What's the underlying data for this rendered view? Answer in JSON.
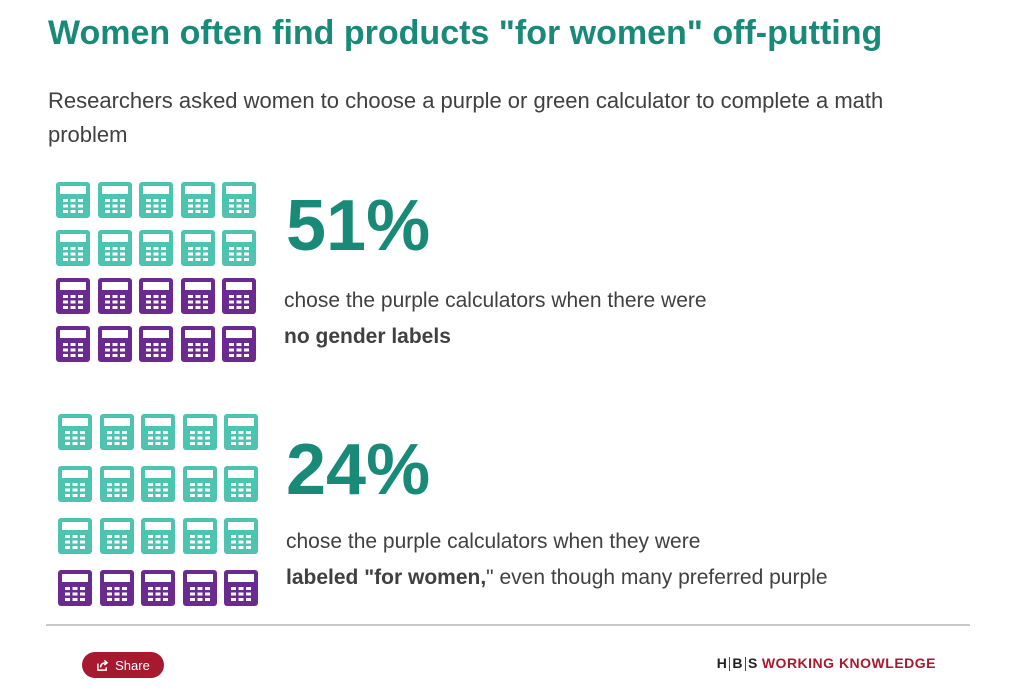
{
  "title": "Women often find products \"for women\" off-putting",
  "subtitle": "Researchers asked women to choose a purple or green calculator to complete a math problem",
  "colors": {
    "green": "#4dc4b0",
    "purple": "#6a2a8f",
    "accent": "#1a8a78",
    "brand": "#a6192e"
  },
  "chart_data": [
    {
      "type": "pictogram",
      "icon": "calculator-icon",
      "total_icons": 20,
      "columns": 5,
      "green_icons": 10,
      "purple_icons": 10,
      "percent_label": "51%",
      "percent_value": 51,
      "description_plain": "chose the purple calculators when there were",
      "description_bold": "no gender labels"
    },
    {
      "type": "pictogram",
      "icon": "calculator-icon",
      "total_icons": 20,
      "columns": 5,
      "green_icons": 15,
      "purple_icons": 5,
      "percent_label": "24%",
      "percent_value": 24,
      "description_plain": "chose the purple calculators when they were",
      "description_bold_prefix": "labeled \"",
      "description_bold": "for women,",
      "description_suffix": "\" even though many preferred purple"
    }
  ],
  "footer": {
    "share_label": "Share",
    "share_icon": "share-icon",
    "brand_hbs_h": "H",
    "brand_hbs_b": "B",
    "brand_hbs_s": "S",
    "brand_name": "WORKING KNOWLEDGE"
  }
}
